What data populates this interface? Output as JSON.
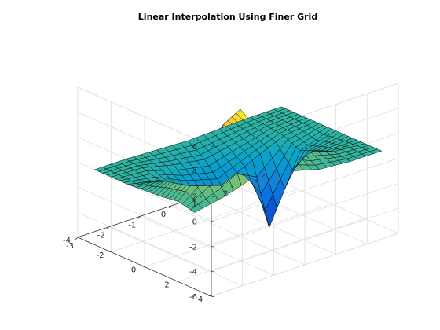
{
  "chart_data": {
    "type": "surface",
    "title": "Linear Interpolation Using Finer Grid",
    "xlabel": "",
    "ylabel": "",
    "zlabel": "",
    "xlim": [
      -3,
      3
    ],
    "ylim": [
      -4,
      4
    ],
    "zlim": [
      -6,
      6
    ],
    "xticks": [
      -3,
      -2,
      -1,
      0,
      1,
      2,
      3
    ],
    "yticks": [
      -4,
      -2,
      0,
      2,
      4
    ],
    "zticks": [
      -6,
      -4,
      -2,
      0,
      2,
      4,
      6
    ],
    "x_tick_labels": [
      "-3",
      "-2",
      "-1",
      "0",
      "1",
      "2",
      "3"
    ],
    "y_tick_labels": [
      "-4",
      "-2",
      "0",
      "2",
      "4"
    ],
    "z_tick_labels": [
      "-6",
      "-4",
      "-2",
      "0",
      "2",
      "4",
      "6"
    ],
    "grid": true,
    "box": true,
    "view": "3d",
    "colormap": "parula",
    "mesh": {
      "x_range": [
        -3,
        3
      ],
      "y_range": [
        -3,
        3
      ],
      "step": 0.25
    },
    "coarse_grid": {
      "x": [
        -3,
        -2,
        -1,
        0,
        1,
        2,
        3
      ],
      "y": [
        -3,
        -2,
        -1,
        0,
        1,
        2,
        3
      ],
      "z": [
        [
          0.0,
          0.0,
          -0.1,
          -0.2,
          -0.1,
          0.0,
          0.0
        ],
        [
          0.0,
          -0.1,
          -0.7,
          -1.1,
          -0.6,
          -0.1,
          0.0
        ],
        [
          0.0,
          -0.5,
          -1.8,
          -2.6,
          -1.4,
          -0.3,
          0.0
        ],
        [
          0.1,
          0.6,
          0.8,
          2.3,
          -6.2,
          -0.9,
          0.0
        ],
        [
          0.2,
          2.1,
          4.3,
          1.5,
          0.1,
          -0.3,
          0.0
        ],
        [
          0.4,
          2.7,
          6.1,
          2.4,
          1.0,
          0.2,
          0.0
        ],
        [
          0.1,
          0.6,
          1.4,
          0.9,
          0.2,
          0.0,
          0.0
        ]
      ]
    }
  }
}
